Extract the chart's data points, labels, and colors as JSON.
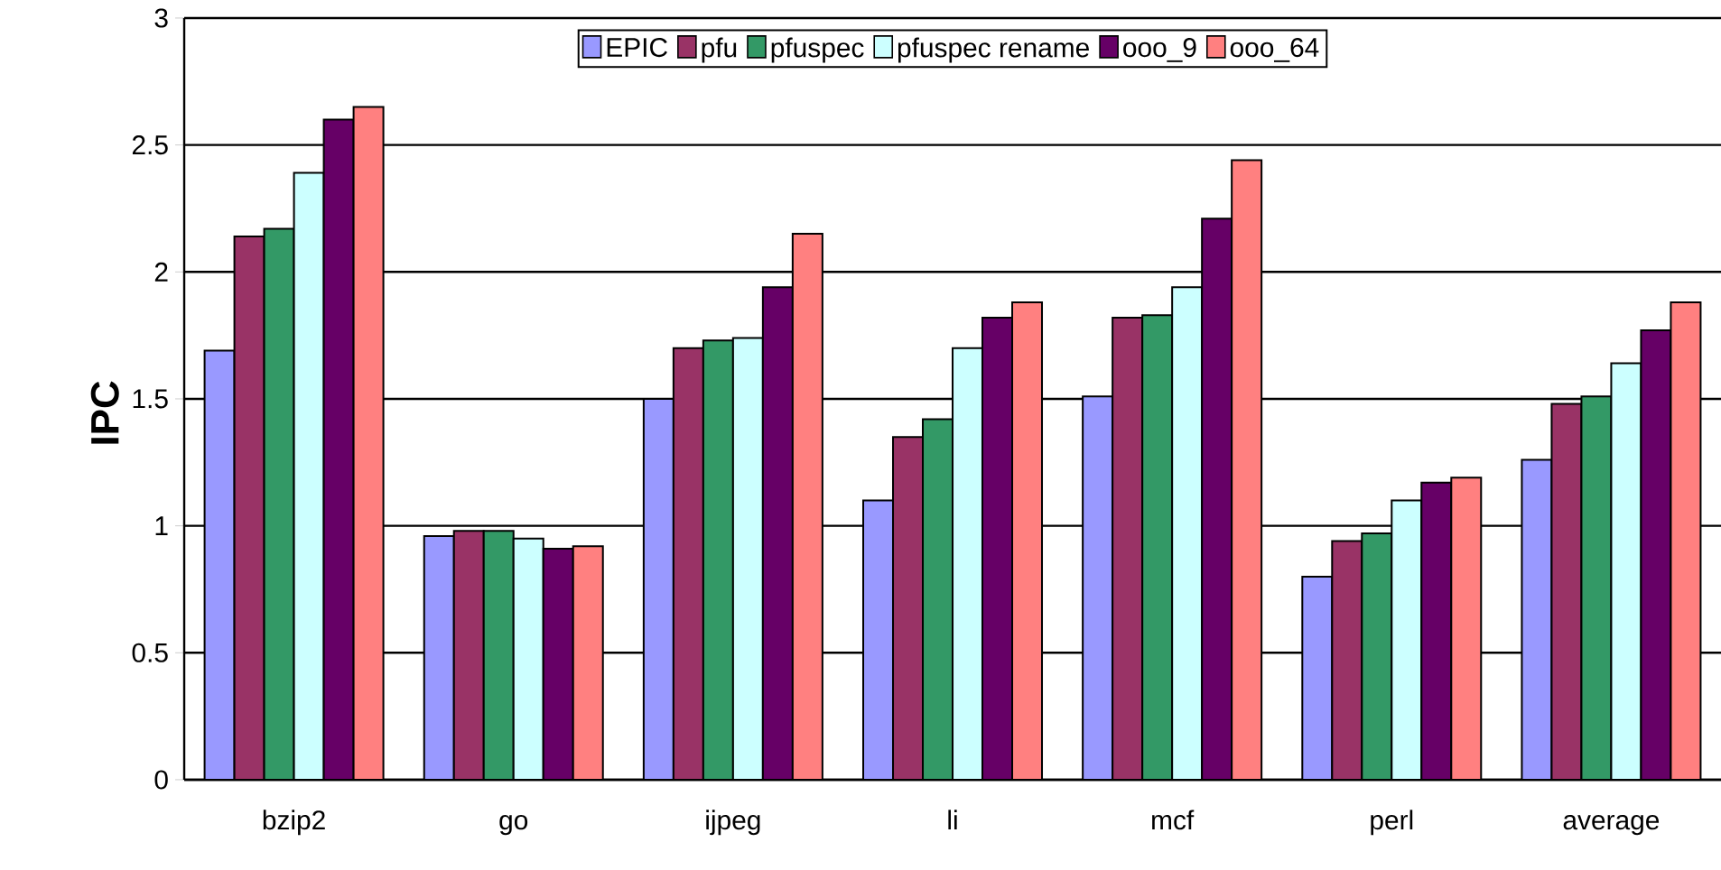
{
  "chart_data": {
    "type": "bar",
    "ylabel": "IPC",
    "categories": [
      "bzip2",
      "go",
      "ijpeg",
      "li",
      "mcf",
      "perl",
      "average"
    ],
    "series": [
      {
        "name": "EPIC",
        "color": "#9999ff",
        "values": [
          1.69,
          0.96,
          1.5,
          1.1,
          1.51,
          0.8,
          1.26
        ]
      },
      {
        "name": "pfu",
        "color": "#993366",
        "values": [
          2.14,
          0.98,
          1.7,
          1.35,
          1.82,
          0.94,
          1.48
        ]
      },
      {
        "name": "pfuspec",
        "color": "#339966",
        "values": [
          2.17,
          0.98,
          1.73,
          1.42,
          1.83,
          0.97,
          1.51
        ]
      },
      {
        "name": "pfuspec rename",
        "color": "#ccffff",
        "values": [
          2.39,
          0.95,
          1.74,
          1.7,
          1.94,
          1.1,
          1.64
        ]
      },
      {
        "name": "ooo_9",
        "color": "#660066",
        "values": [
          2.6,
          0.91,
          1.94,
          1.82,
          2.21,
          1.17,
          1.77
        ]
      },
      {
        "name": "ooo_64",
        "color": "#ff8080",
        "values": [
          2.65,
          0.92,
          2.15,
          1.88,
          2.44,
          1.19,
          1.88
        ]
      }
    ],
    "ylim": [
      0,
      3
    ],
    "yticks": [
      0,
      0.5,
      1,
      1.5,
      2,
      2.5,
      3
    ],
    "grid": "y",
    "legend": "top"
  }
}
